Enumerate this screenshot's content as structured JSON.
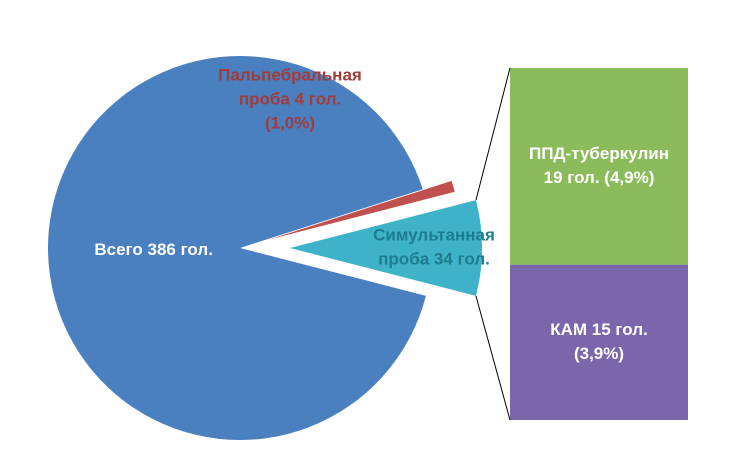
{
  "chart_data": {
    "type": "pie-of-bar",
    "pie": {
      "values": [
        386,
        4,
        34
      ],
      "colors": [
        "#4a7fc0",
        "#c0504d",
        "#3eb2c8"
      ],
      "value_labels": [
        [
          "Всего 386 гол."
        ],
        [
          "Пальпебральная",
          "проба 4 гол.",
          "(1,0%)"
        ],
        [
          "Симультанная",
          "проба 34 гол."
        ]
      ]
    },
    "bar": {
      "values": [
        19,
        15
      ],
      "colors": [
        "#8cbb5c",
        "#7b66ab"
      ],
      "value_labels": [
        [
          "ППД-туберкулин",
          "19 гол. (4,9%)"
        ],
        [
          "КАМ 15 гол.",
          "(3,9%)"
        ]
      ]
    }
  }
}
